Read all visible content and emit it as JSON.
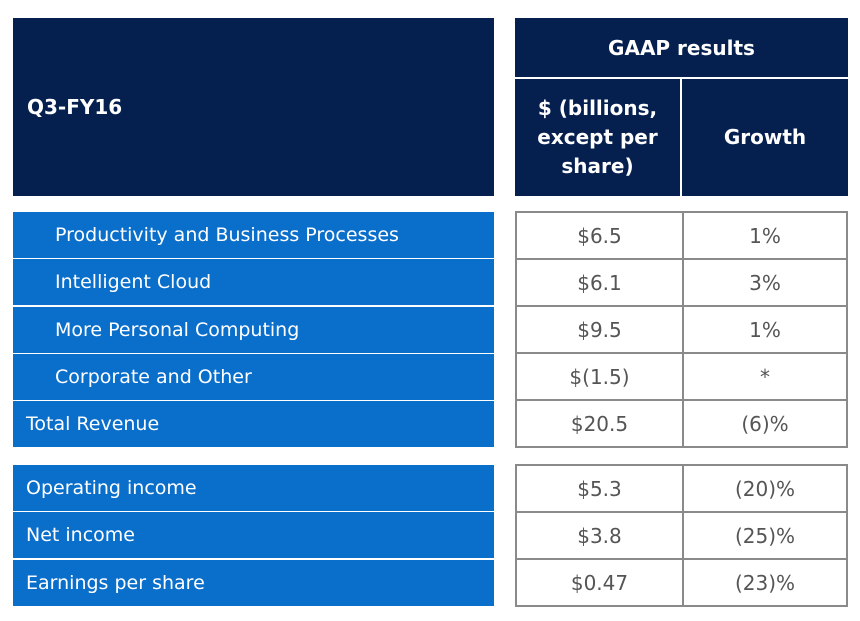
{
  "header": {
    "period": "Q3-FY16",
    "group": "GAAP results",
    "col1": "$ (billions, except per share)",
    "col2": "Growth"
  },
  "colors": {
    "navy": "#05204f",
    "blue": "#0a6ecb"
  },
  "revenue_rows": [
    {
      "label": "Productivity and Business Processes",
      "value": "$6.5",
      "growth": "1%",
      "indent": true
    },
    {
      "label": "Intelligent Cloud",
      "value": "$6.1",
      "growth": "3%",
      "indent": true
    },
    {
      "label": "More Personal Computing",
      "value": "$9.5",
      "growth": "1%",
      "indent": true
    },
    {
      "label": "Corporate and Other",
      "value": "$(1.5)",
      "growth": "*",
      "indent": true
    },
    {
      "label": "Total Revenue",
      "value": "$20.5",
      "growth": "(6)%",
      "indent": false
    }
  ],
  "income_rows": [
    {
      "label": "Operating income",
      "value": "$5.3",
      "growth": "(20)%"
    },
    {
      "label": "Net income",
      "value": "$3.8",
      "growth": "(25)%"
    },
    {
      "label": "Earnings per share",
      "value": "$0.47",
      "growth": "(23)%"
    }
  ]
}
